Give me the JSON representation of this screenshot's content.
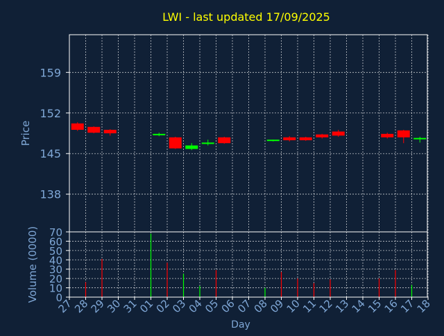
{
  "colors": {
    "background": "#102036",
    "frame": "#ffffff",
    "grid": "#ffffff",
    "title": "#ffff00",
    "axis_text": "#7fa7d6",
    "up": "#00ff00",
    "down": "#ff0000"
  },
  "chart_data": [
    {
      "type": "candlestick",
      "title": "LWI - last updated 17/09/2025",
      "ylabel": "Price",
      "xlabel": "Day",
      "ylim": [
        131.5,
        165.5
      ],
      "yticks": [
        138,
        145,
        152,
        159
      ],
      "grid": true,
      "x": [
        "27",
        "28",
        "29",
        "30",
        "31",
        "01",
        "02",
        "03",
        "04",
        "05",
        "06",
        "07",
        "08",
        "09",
        "10",
        "11",
        "12",
        "13",
        "14",
        "15",
        "16",
        "17",
        "18"
      ],
      "candles": [
        {
          "day": "27",
          "open": 150.2,
          "high": 150.4,
          "low": 148.9,
          "close": 149.1
        },
        {
          "day": "28",
          "open": 149.6,
          "high": 149.7,
          "low": 148.5,
          "close": 148.6
        },
        {
          "day": "29",
          "open": 149.1,
          "high": 149.2,
          "low": 148.1,
          "close": 148.5
        },
        {
          "day": "01",
          "open": 148.2,
          "high": 148.6,
          "low": 148.0,
          "close": 148.4
        },
        {
          "day": "02",
          "open": 147.8,
          "high": 147.9,
          "low": 145.8,
          "close": 145.9
        },
        {
          "day": "03",
          "open": 145.8,
          "high": 146.8,
          "low": 145.6,
          "close": 146.4
        },
        {
          "day": "04",
          "open": 146.7,
          "high": 147.4,
          "low": 146.4,
          "close": 146.9
        },
        {
          "day": "05",
          "open": 147.8,
          "high": 147.9,
          "low": 146.7,
          "close": 146.8
        },
        {
          "day": "08",
          "open": 147.2,
          "high": 147.4,
          "low": 147.1,
          "close": 147.4
        },
        {
          "day": "09",
          "open": 147.8,
          "high": 148.0,
          "low": 147.1,
          "close": 147.3
        },
        {
          "day": "10",
          "open": 147.8,
          "high": 147.9,
          "low": 147.2,
          "close": 147.3
        },
        {
          "day": "11",
          "open": 148.3,
          "high": 148.4,
          "low": 147.6,
          "close": 147.8
        },
        {
          "day": "12",
          "open": 148.8,
          "high": 149.1,
          "low": 147.9,
          "close": 148.1
        },
        {
          "day": "15",
          "open": 148.4,
          "high": 148.6,
          "low": 147.6,
          "close": 147.8
        },
        {
          "day": "16",
          "open": 149.0,
          "high": 149.1,
          "low": 146.8,
          "close": 147.8
        },
        {
          "day": "17",
          "open": 147.6,
          "high": 147.9,
          "low": 146.9,
          "close": 147.7
        }
      ]
    },
    {
      "type": "bar",
      "ylabel": "Volume (0000)",
      "xlabel": "Day",
      "ylim": [
        0,
        70
      ],
      "yticks": [
        0,
        10,
        20,
        30,
        40,
        50,
        60,
        70
      ],
      "grid": true,
      "x": [
        "27",
        "28",
        "29",
        "30",
        "31",
        "01",
        "02",
        "03",
        "04",
        "05",
        "06",
        "07",
        "08",
        "09",
        "10",
        "11",
        "12",
        "13",
        "14",
        "15",
        "16",
        "17",
        "18"
      ],
      "bars": [
        {
          "day": "28",
          "value": 16,
          "direction": "down"
        },
        {
          "day": "29",
          "value": 41,
          "direction": "down"
        },
        {
          "day": "01",
          "value": 68,
          "direction": "up"
        },
        {
          "day": "02",
          "value": 37,
          "direction": "down"
        },
        {
          "day": "03",
          "value": 25,
          "direction": "up"
        },
        {
          "day": "04",
          "value": 12,
          "direction": "up"
        },
        {
          "day": "05",
          "value": 29,
          "direction": "down"
        },
        {
          "day": "08",
          "value": 10,
          "direction": "up"
        },
        {
          "day": "09",
          "value": 27,
          "direction": "down"
        },
        {
          "day": "10",
          "value": 20,
          "direction": "down"
        },
        {
          "day": "11",
          "value": 15,
          "direction": "down"
        },
        {
          "day": "12",
          "value": 19,
          "direction": "down"
        },
        {
          "day": "15",
          "value": 20,
          "direction": "down"
        },
        {
          "day": "16",
          "value": 29,
          "direction": "down"
        },
        {
          "day": "17",
          "value": 13,
          "direction": "up"
        }
      ]
    }
  ]
}
